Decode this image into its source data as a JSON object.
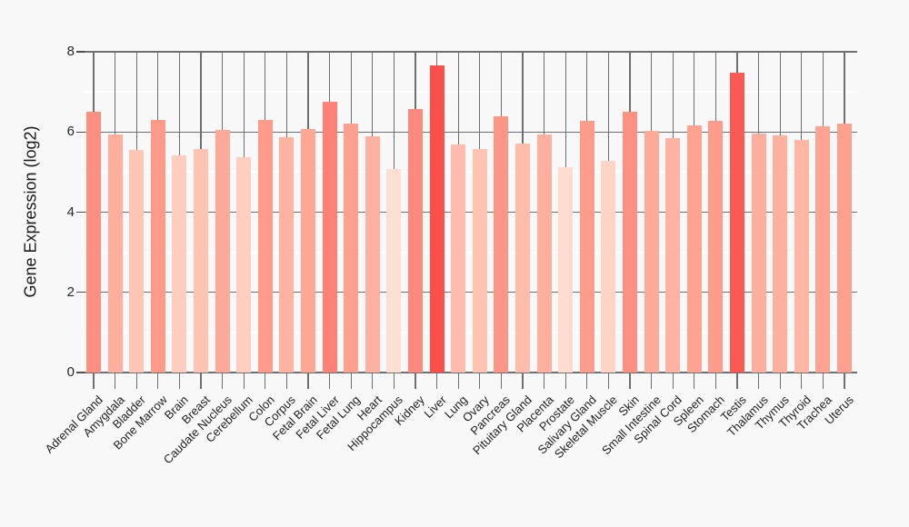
{
  "chart_data": {
    "type": "bar",
    "title": "",
    "xlabel": "",
    "ylabel": "Gene Expression (log2)",
    "ylim": [
      0,
      8
    ],
    "yticks": [
      0,
      2,
      4,
      6,
      8
    ],
    "minor_gridlines": [
      1,
      3,
      5,
      7
    ],
    "grid": true,
    "legend": "none",
    "background_color": "#f8f8f8",
    "major_grid_color": "#6f6f6f",
    "minor_grid_color": "#ffffff",
    "category_line_color": "#6f6f6f",
    "color_scale": {
      "stops": [
        [
          5.0,
          "#ffe3d6"
        ],
        [
          6.0,
          "#feab99"
        ],
        [
          7.0,
          "#fd7468"
        ],
        [
          7.7,
          "#fc4c4a"
        ]
      ]
    },
    "categories": [
      "Adrenal Gland",
      "Amygdala",
      "Bladder",
      "Bone Marrow",
      "Brain",
      "Breast",
      "Caudate Nucleus",
      "Cerebellum",
      "Colon",
      "Corpus",
      "Fetal Brain",
      "Fetal Liver",
      "Fetal Lung",
      "Heart",
      "Hippocampus",
      "Kidney",
      "Liver",
      "Lung",
      "Ovary",
      "Pancreas",
      "Pituitary Gland",
      "Placenta",
      "Prostate",
      "Salivary Gland",
      "Skeletal Muscle",
      "Skin",
      "Small Intestine",
      "Spinal Cord",
      "Spleen",
      "Stomach",
      "Testis",
      "Thalamus",
      "Thymus",
      "Thyroid",
      "Trachea",
      "Uterus"
    ],
    "values": [
      6.51,
      5.94,
      5.55,
      6.31,
      5.41,
      5.57,
      6.05,
      5.38,
      6.29,
      5.88,
      6.08,
      6.76,
      6.2,
      5.89,
      5.08,
      6.58,
      7.65,
      5.69,
      5.58,
      6.38,
      5.71,
      5.93,
      5.12,
      6.28,
      5.27,
      6.5,
      6.02,
      5.85,
      6.17,
      6.28,
      7.48,
      5.95,
      5.91,
      5.8,
      6.14,
      6.2
    ]
  }
}
